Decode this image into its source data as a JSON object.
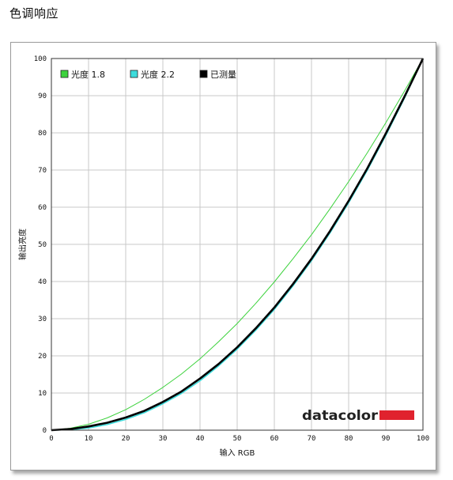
{
  "page": {
    "title": "色调响应"
  },
  "chart_data": {
    "type": "line",
    "title": "",
    "xlabel": "输入 RGB",
    "ylabel": "输出亮度",
    "xlim": [
      0,
      100
    ],
    "ylim": [
      0,
      100
    ],
    "x_ticks": [
      0,
      10,
      20,
      30,
      40,
      50,
      60,
      70,
      80,
      90,
      100
    ],
    "y_ticks": [
      0,
      10,
      20,
      30,
      40,
      50,
      60,
      70,
      80,
      90,
      100
    ],
    "grid": true,
    "legend_position": "top-left",
    "series": [
      {
        "name": "光度 1.8",
        "color": "#3cd23c",
        "x": [
          0,
          5,
          10,
          15,
          20,
          25,
          30,
          35,
          40,
          45,
          50,
          55,
          60,
          65,
          70,
          75,
          80,
          85,
          90,
          95,
          100
        ],
        "y": [
          0,
          0.5,
          1.6,
          3.3,
          5.5,
          8.3,
          11.5,
          15.1,
          19.2,
          23.8,
          28.7,
          34.1,
          39.9,
          46.1,
          52.6,
          59.6,
          66.9,
          74.6,
          82.7,
          91.2,
          100
        ]
      },
      {
        "name": "光度 2.2",
        "color": "#3ddcdc",
        "x": [
          0,
          5,
          10,
          15,
          20,
          25,
          30,
          35,
          40,
          45,
          50,
          55,
          60,
          65,
          70,
          75,
          80,
          85,
          90,
          95,
          100
        ],
        "y": [
          0,
          0.1,
          0.6,
          1.5,
          2.9,
          4.7,
          7.1,
          9.9,
          13.3,
          17.3,
          21.8,
          26.9,
          32.5,
          38.8,
          45.6,
          53.1,
          61.2,
          69.9,
          79.3,
          89.3,
          100
        ]
      },
      {
        "name": "已测量",
        "color": "#000000",
        "x": [
          0,
          5,
          10,
          15,
          20,
          25,
          30,
          35,
          40,
          45,
          50,
          55,
          60,
          65,
          70,
          75,
          80,
          85,
          90,
          95,
          100
        ],
        "y": [
          0,
          0.3,
          1.0,
          2.0,
          3.4,
          5.2,
          7.6,
          10.4,
          13.9,
          17.8,
          22.3,
          27.4,
          33.0,
          39.3,
          46.1,
          53.6,
          61.7,
          70.4,
          79.8,
          89.7,
          100
        ]
      }
    ]
  },
  "branding": {
    "logo_text": "datacolor",
    "logo_bar_color": "#e0222e"
  }
}
